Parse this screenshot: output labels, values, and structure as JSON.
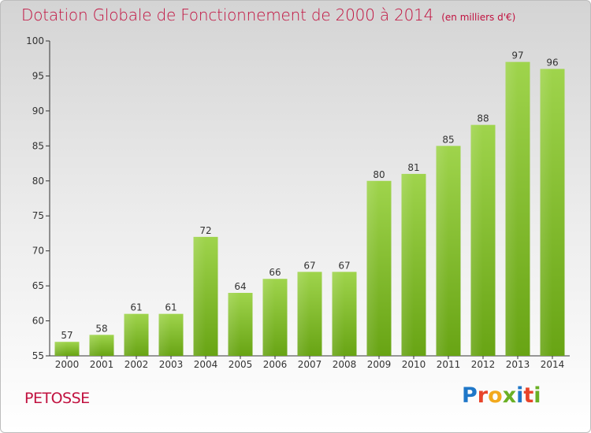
{
  "header": {
    "title": "Dotation Globale de Fonctionnement de 2000 à 2014",
    "unit": "(en milliers d'€)"
  },
  "footer": {
    "commune": "PETOSSE",
    "logo_text": "Proxiti"
  },
  "colors": {
    "title": "#c1113f",
    "bar_light": "#9fd44c",
    "bar_dark": "#68a414",
    "logo": [
      "#1f77c8",
      "#e8442a",
      "#f2a91d",
      "#6ab025",
      "#1f77c8",
      "#e8442a",
      "#6ab025"
    ]
  },
  "chart_data": {
    "type": "bar",
    "title": "Dotation Globale de Fonctionnement de 2000 à 2014",
    "subtitle": "(en milliers d'€)",
    "categories": [
      "2000",
      "2001",
      "2002",
      "2003",
      "2004",
      "2005",
      "2006",
      "2007",
      "2008",
      "2009",
      "2010",
      "2011",
      "2012",
      "2013",
      "2014"
    ],
    "values": [
      57,
      58,
      61,
      61,
      72,
      64,
      66,
      67,
      67,
      80,
      81,
      85,
      88,
      97,
      96
    ],
    "ylim": [
      55,
      100
    ],
    "yticks": [
      55,
      60,
      65,
      70,
      75,
      80,
      85,
      90,
      95,
      100
    ],
    "grid": false,
    "legend": "none"
  }
}
